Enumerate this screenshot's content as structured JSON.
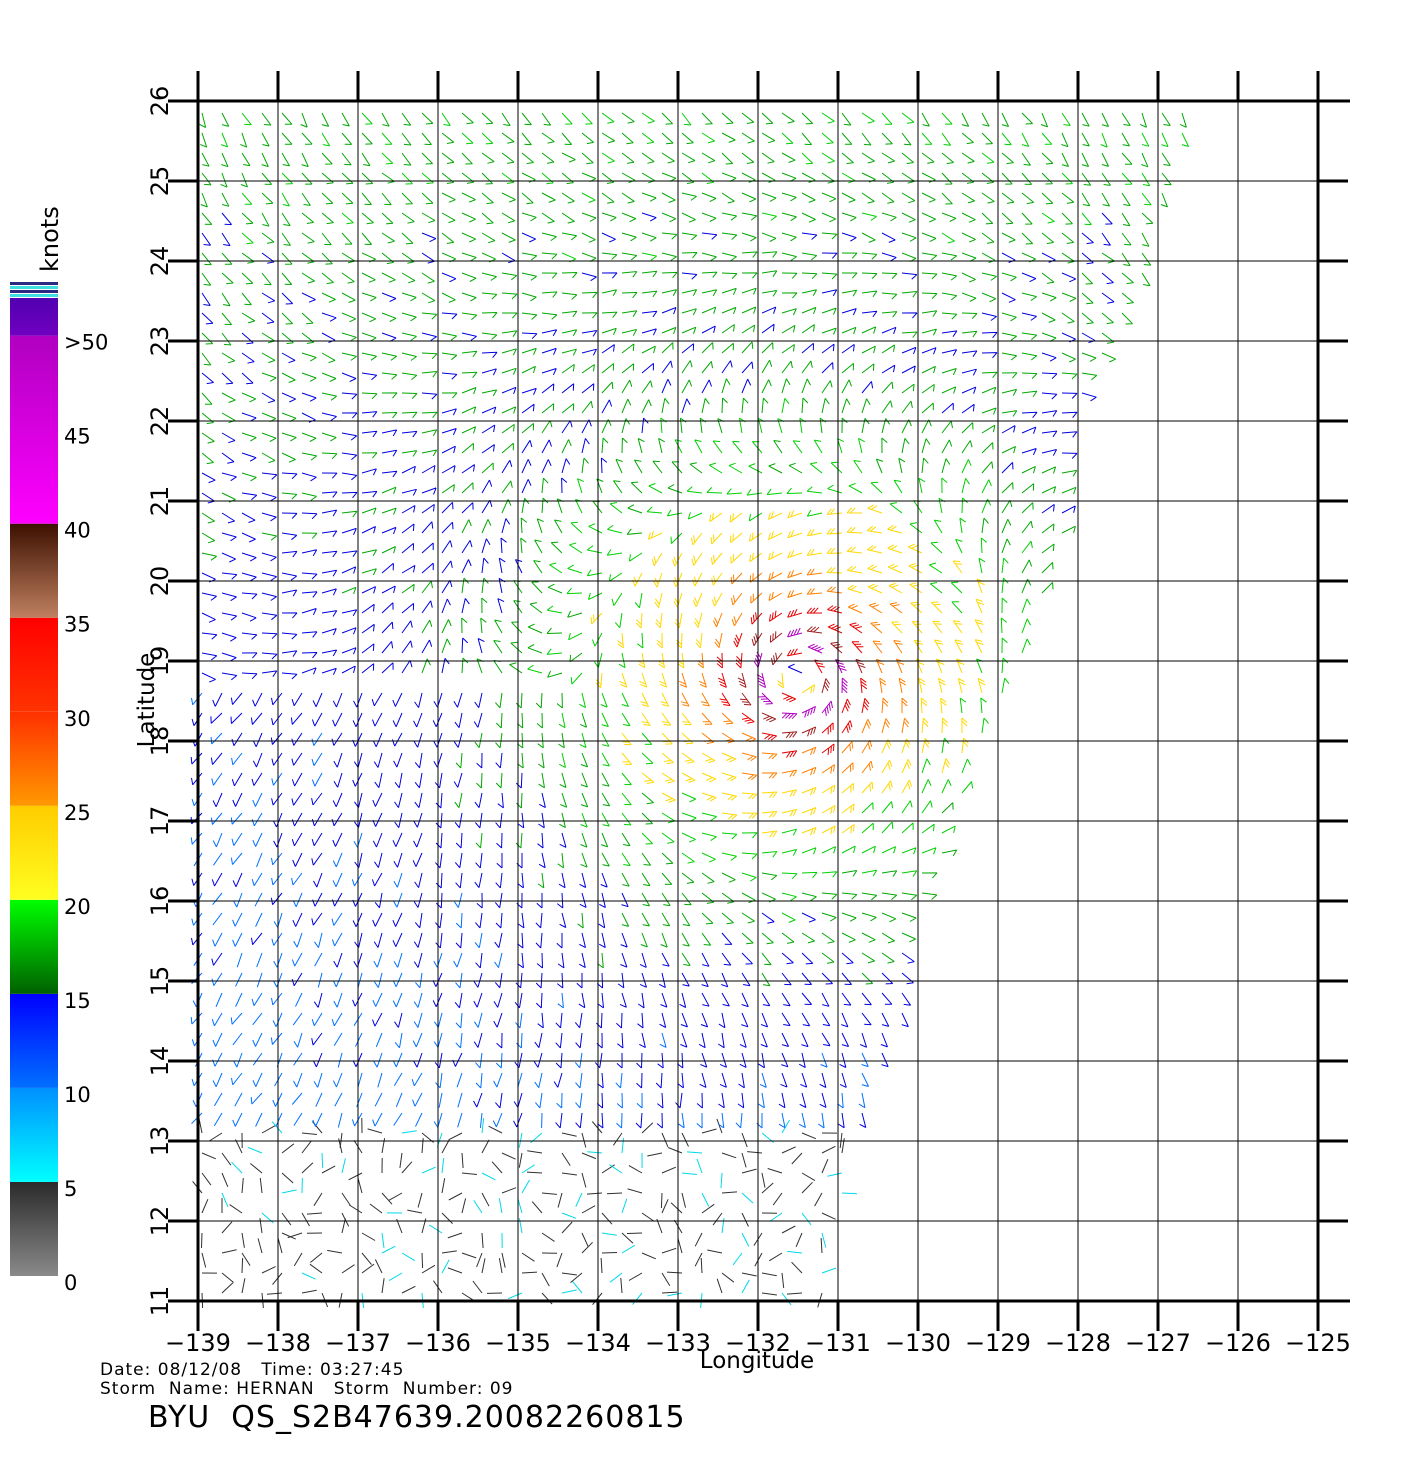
{
  "figure": {
    "x_axis_label": "Longitude",
    "y_axis_label": "Latitude",
    "x_ticks": [
      -139,
      -138,
      -137,
      -136,
      -135,
      -134,
      -133,
      -132,
      -131,
      -130,
      -129,
      -128,
      -127,
      -126,
      -125
    ],
    "y_ticks": [
      11,
      12,
      13,
      14,
      15,
      16,
      17,
      18,
      19,
      20,
      21,
      22,
      23,
      24,
      25,
      26
    ],
    "lon_range": [
      -139,
      -125
    ],
    "lat_range": [
      11,
      26
    ],
    "grid": true
  },
  "legend": {
    "title": "knots",
    "labels": [
      {
        "text": ">50",
        "value": 50
      },
      {
        "text": "45",
        "value": 45
      },
      {
        "text": "40",
        "value": 40
      },
      {
        "text": "35",
        "value": 35
      },
      {
        "text": "30",
        "value": 30
      },
      {
        "text": "25",
        "value": 25
      },
      {
        "text": "20",
        "value": 20
      },
      {
        "text": "15",
        "value": 15
      },
      {
        "text": "10",
        "value": 10
      },
      {
        "text": "5",
        "value": 5
      },
      {
        "text": "0",
        "value": 0
      }
    ],
    "bands": [
      {
        "from": 0,
        "to": 5,
        "top": "#2a2a2a",
        "bottom": "#8a8a8a"
      },
      {
        "from": 5,
        "to": 10,
        "top": "#0090ff",
        "bottom": "#00ffff"
      },
      {
        "from": 10,
        "to": 15,
        "top": "#0000ff",
        "bottom": "#0070ff"
      },
      {
        "from": 15,
        "to": 20,
        "top": "#00ff00",
        "bottom": "#006000"
      },
      {
        "from": 20,
        "to": 25,
        "top": "#ffcc00",
        "bottom": "#ffff20"
      },
      {
        "from": 25,
        "to": 30,
        "top": "#ff3000",
        "bottom": "#ff9900"
      },
      {
        "from": 30,
        "to": 35,
        "top": "#ff0000",
        "bottom": "#ff3300"
      },
      {
        "from": 35,
        "to": 40,
        "top": "#3c1000",
        "bottom": "#c08060"
      },
      {
        "from": 40,
        "to": 50,
        "top": "#b000c0",
        "bottom": "#ff00ff"
      },
      {
        "from": 50,
        "to": 52,
        "top": "#5000b0",
        "bottom": "#7000c0"
      }
    ]
  },
  "storm": {
    "center_lon": -131.5,
    "center_lat": 18.8
  },
  "swath": {
    "right_edge": [
      [
        26.0,
        -126.5
      ],
      [
        25.0,
        -126.9
      ],
      [
        24.0,
        -127.1
      ],
      [
        23.0,
        -127.5
      ],
      [
        22.0,
        -128.0
      ],
      [
        21.0,
        -128.0
      ],
      [
        20.0,
        -128.4
      ],
      [
        19.0,
        -128.7
      ],
      [
        18.0,
        -129.2
      ],
      [
        17.0,
        -129.5
      ],
      [
        16.0,
        -130.0
      ],
      [
        15.0,
        -130.0
      ],
      [
        14.0,
        -130.5
      ],
      [
        13.0,
        -130.8
      ],
      [
        12.0,
        -131.0
      ],
      [
        11.0,
        -131.0
      ]
    ]
  },
  "info": {
    "date_line": "Date: 08/12/08   Time: 03:27:45",
    "storm_line": "Storm  Name: HERNAN   Storm  Number: 09",
    "file_id": "BYU  QS_S2B47639.20082260815"
  }
}
